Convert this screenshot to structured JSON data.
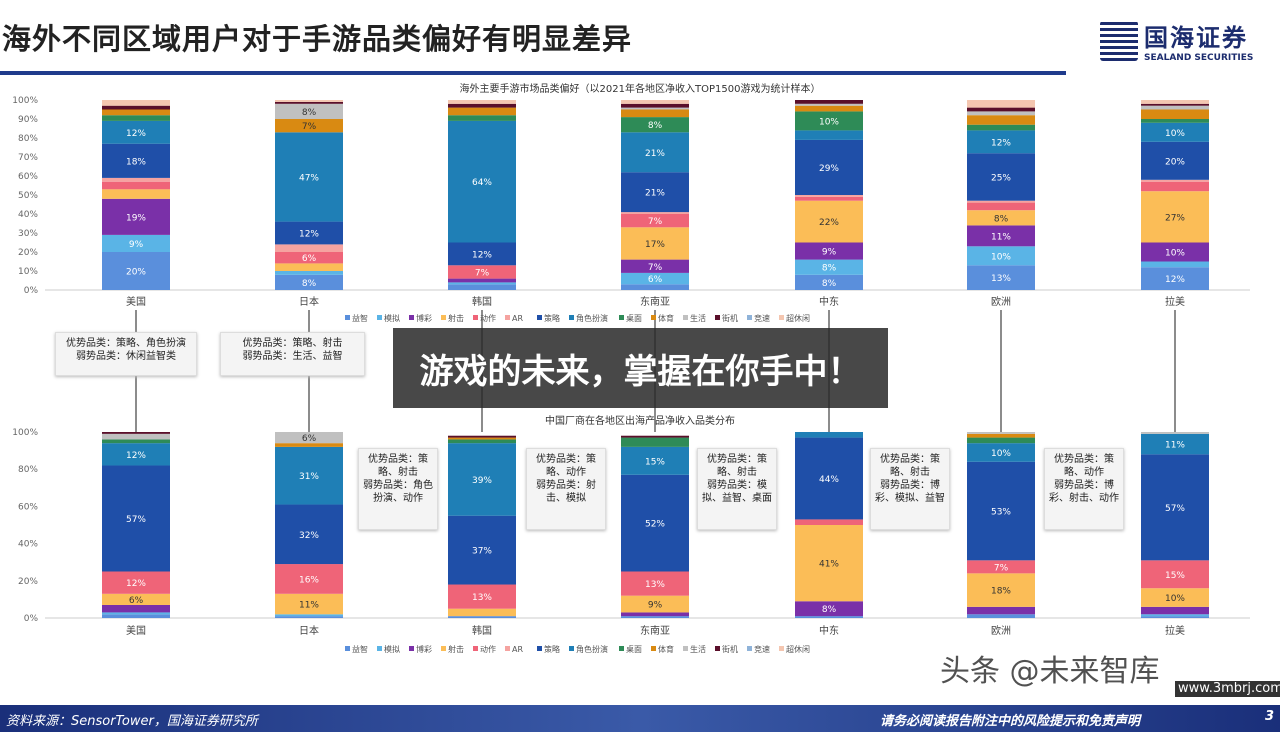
{
  "header": {
    "title": "海外不同区域用户对于手游品类偏好有明显差异",
    "logo_cn": "国海证券",
    "logo_en": "SEALAND SECURITIES"
  },
  "overlay_banner": "游戏的未来，掌握在你手中！",
  "footer": {
    "source": "资料来源：SensorTower，国海证券研究所",
    "disclaimer": "请务必阅读报告附注中的风险提示和免责声明",
    "page": "3"
  },
  "watermark": {
    "text": "头条 @未来智库",
    "url": "www.3mbrj.com"
  },
  "callouts": {
    "top": [
      "优势品类：策略、角色扮演\n弱势品类：休闲益智类",
      "优势品类：策略、射击\n弱势品类：生活、益智"
    ],
    "bottom": [
      "优势品类：策略、射击\n弱势品类：角色扮演、动作",
      "优势品类：策略、动作\n弱势品类：射击、模拟",
      "优势品类：策略、射击\n弱势品类：模拟、益智、桌面",
      "优势品类：策略、射击\n弱势品类：博彩、模拟、益智",
      "优势品类：策略、动作\n弱势品类：博彩、射击、动作"
    ]
  },
  "chart_data": [
    {
      "type": "bar",
      "stacked": true,
      "title": "海外主要手游市场品类偏好（以2021年各地区净收入TOP1500游戏为统计样本）",
      "categories": [
        "美国",
        "日本",
        "韩国",
        "东南亚",
        "中东",
        "欧洲",
        "拉美"
      ],
      "ylim": [
        0,
        100
      ],
      "yticks": [
        "0%",
        "10%",
        "20%",
        "30%",
        "40%",
        "50%",
        "60%",
        "70%",
        "80%",
        "90%",
        "100%"
      ],
      "series": [
        {
          "name": "益智",
          "color": "#5a8fdc",
          "values": [
            20,
            8,
            3,
            3,
            8,
            13,
            12
          ]
        },
        {
          "name": "模拟",
          "color": "#5ab4e6",
          "values": [
            9,
            2,
            1,
            6,
            8,
            10,
            3
          ]
        },
        {
          "name": "博彩",
          "color": "#7a30a8",
          "values": [
            19,
            0,
            2,
            7,
            9,
            11,
            10
          ]
        },
        {
          "name": "射击",
          "color": "#fbbd57",
          "values": [
            5,
            4,
            0,
            17,
            22,
            8,
            27
          ]
        },
        {
          "name": "动作",
          "color": "#ef6478",
          "values": [
            4,
            6,
            7,
            7,
            2,
            4,
            5
          ]
        },
        {
          "name": "AR",
          "color": "#f5a3a0",
          "values": [
            2,
            4,
            0,
            1,
            1,
            1,
            1
          ]
        },
        {
          "name": "策略",
          "color": "#1f4fa8",
          "values": [
            18,
            12,
            12,
            21,
            29,
            25,
            20
          ]
        },
        {
          "name": "角色扮演",
          "color": "#1f7fb6",
          "values": [
            12,
            47,
            64,
            21,
            5,
            12,
            10
          ]
        },
        {
          "name": "桌面",
          "color": "#2e8b57",
          "values": [
            3,
            0,
            3,
            8,
            10,
            3,
            2
          ]
        },
        {
          "name": "体育",
          "color": "#d98a12",
          "values": [
            3,
            7,
            4,
            4,
            3,
            5,
            5
          ]
        },
        {
          "name": "生活",
          "color": "#c0c0c0",
          "values": [
            0,
            8,
            0,
            1,
            1,
            2,
            2
          ]
        },
        {
          "name": "街机",
          "color": "#5a0f2a",
          "values": [
            2,
            1,
            2,
            2,
            2,
            2,
            1
          ]
        },
        {
          "name": "竞速",
          "color": "#8fb3d9",
          "values": [
            0,
            0,
            0,
            0,
            0,
            0,
            0
          ]
        },
        {
          "name": "超休闲",
          "color": "#f4c6b0",
          "values": [
            3,
            1,
            2,
            2,
            0,
            4,
            2
          ]
        }
      ]
    },
    {
      "type": "bar",
      "stacked": true,
      "title": "中国厂商在各地区出海产品净收入品类分布",
      "categories": [
        "美国",
        "日本",
        "韩国",
        "东南亚",
        "中东",
        "欧洲",
        "拉美"
      ],
      "ylim": [
        0,
        100
      ],
      "yticks": [
        "0%",
        "20%",
        "40%",
        "60%",
        "80%",
        "100%"
      ],
      "series": [
        {
          "name": "益智",
          "color": "#5a8fdc",
          "values": [
            2,
            1,
            1,
            1,
            1,
            2,
            1
          ]
        },
        {
          "name": "模拟",
          "color": "#5ab4e6",
          "values": [
            1,
            1,
            0,
            0,
            0,
            0,
            1
          ]
        },
        {
          "name": "博彩",
          "color": "#7a30a8",
          "values": [
            4,
            0,
            0,
            2,
            8,
            4,
            4
          ]
        },
        {
          "name": "射击",
          "color": "#fbbd57",
          "values": [
            6,
            11,
            4,
            9,
            41,
            18,
            10
          ]
        },
        {
          "name": "动作",
          "color": "#ef6478",
          "values": [
            12,
            16,
            13,
            13,
            3,
            7,
            15
          ]
        },
        {
          "name": "AR",
          "color": "#f5a3a0",
          "values": [
            0,
            0,
            0,
            0,
            0,
            0,
            0
          ]
        },
        {
          "name": "策略",
          "color": "#1f4fa8",
          "values": [
            57,
            32,
            37,
            52,
            44,
            53,
            57
          ]
        },
        {
          "name": "角色扮演",
          "color": "#1f7fb6",
          "values": [
            12,
            31,
            39,
            15,
            3,
            10,
            11
          ]
        },
        {
          "name": "桌面",
          "color": "#2e8b57",
          "values": [
            2,
            0,
            2,
            5,
            0,
            3,
            0
          ]
        },
        {
          "name": "体育",
          "color": "#d98a12",
          "values": [
            0,
            2,
            1,
            0,
            0,
            2,
            0
          ]
        },
        {
          "name": "生活",
          "color": "#c0c0c0",
          "values": [
            3,
            6,
            0,
            0,
            0,
            1,
            1
          ]
        },
        {
          "name": "街机",
          "color": "#5a0f2a",
          "values": [
            1,
            0,
            1,
            1,
            0,
            0,
            0
          ]
        },
        {
          "name": "竞速",
          "color": "#8fb3d9",
          "values": [
            0,
            0,
            0,
            0,
            0,
            0,
            0
          ]
        },
        {
          "name": "超休闲",
          "color": "#f4c6b0",
          "values": [
            0,
            0,
            0,
            0,
            0,
            0,
            0
          ]
        }
      ]
    }
  ]
}
